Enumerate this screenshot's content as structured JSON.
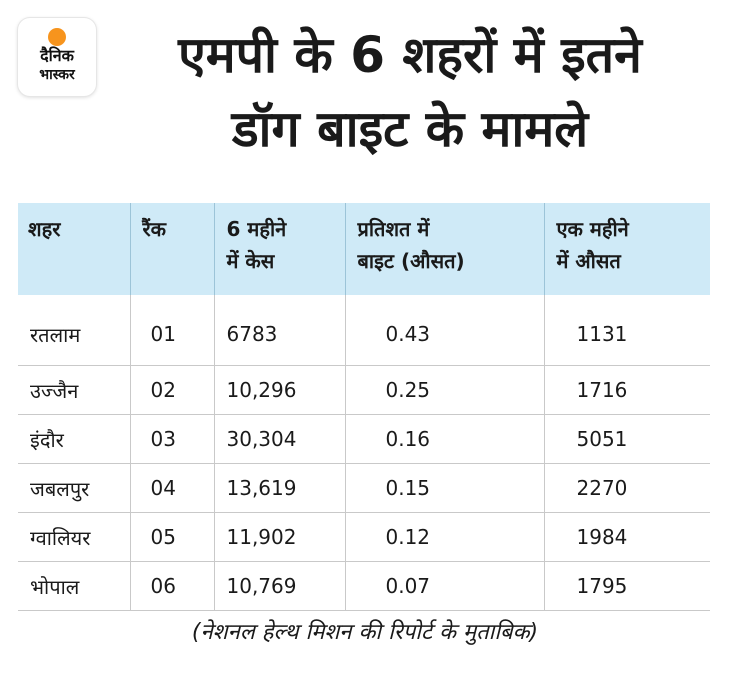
{
  "logo": {
    "line1": "दैनिक",
    "line2": "भास्कर",
    "accent_color": "#f7941d"
  },
  "title": {
    "line1": "एमपी के 6 शहरों में इतने",
    "line2": "डॉग बाइट के मामले"
  },
  "table": {
    "header_bg": "#cfeaf7",
    "headers": [
      {
        "line1": "शहर",
        "line2": ""
      },
      {
        "line1": "रैंक",
        "line2": ""
      },
      {
        "line1": "6 महीने",
        "line2": "में केस"
      },
      {
        "line1": "प्रतिशत में",
        "line2": "बाइट (औसत)"
      },
      {
        "line1": "एक महीने",
        "line2": "में औसत"
      }
    ],
    "rows": [
      [
        "रतलाम",
        "01",
        "6783",
        "0.43",
        "1131"
      ],
      [
        "उज्जैन",
        "02",
        "10,296",
        "0.25",
        "1716"
      ],
      [
        "इंदौर",
        "03",
        "30,304",
        "0.16",
        "5051"
      ],
      [
        "जबलपुर",
        "04",
        "13,619",
        "0.15",
        "2270"
      ],
      [
        "ग्वालियर",
        "05",
        "11,902",
        "0.12",
        "1984"
      ],
      [
        "भोपाल",
        "06",
        "10,769",
        "0.07",
        "1795"
      ]
    ]
  },
  "footer": "(नेशनल हेल्थ मिशन की रिपोर्ट के मुताबिक)"
}
